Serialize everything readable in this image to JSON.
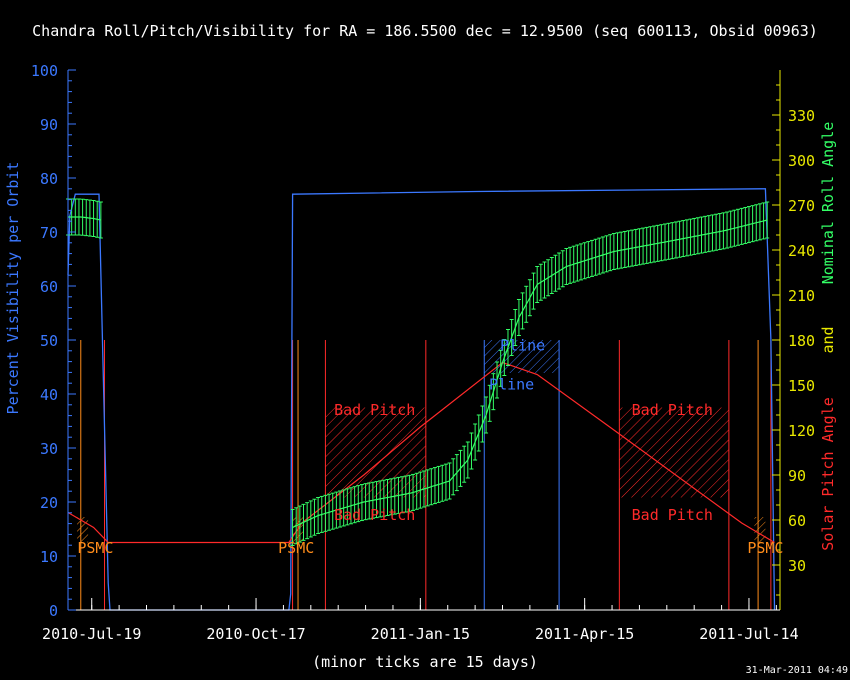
{
  "title": "Chandra Roll/Pitch/Visibility for RA = 186.5500 dec = 12.9500 (seq 600113, Obsid 00963)",
  "footer_note": "(minor ticks are 15 days)",
  "timestamp": "31-Mar-2011 04:49",
  "colors": {
    "background": "#000000",
    "visibility": "#3b78ff",
    "roll": "#33ff66",
    "pitch": "#ff2a2a",
    "right_axis": "#e8e800",
    "psmc": "#ff8c1a",
    "pline": "#3b78ff",
    "text": "#ffffff"
  },
  "chart_data": {
    "type": "line",
    "x_axis": {
      "ticks": [
        "2010-Jul-19",
        "2010-Oct-17",
        "2011-Jan-15",
        "2011-Apr-15",
        "2011-Jul-14"
      ],
      "range": [
        "2010-Jul-06",
        "2011-Jul-31"
      ],
      "minor_tick_days": 15
    },
    "left_axis": {
      "label": "Percent Visibility per Orbit",
      "range": [
        0,
        100
      ],
      "ticks": [
        "0",
        "10",
        "20",
        "30",
        "40",
        "50",
        "60",
        "70",
        "80",
        "90",
        "100"
      ]
    },
    "right_axis": {
      "label_parts": [
        "Nominal Roll Angle",
        "and",
        "Solar Pitch Angle"
      ],
      "range": [
        0,
        360
      ],
      "ticks": [
        "30",
        "60",
        "90",
        "120",
        "150",
        "180",
        "210",
        "240",
        "270",
        "300",
        "330"
      ]
    },
    "visibility_series": {
      "name": "Percent Visibility per Orbit",
      "points": [
        [
          "2010-Jul-06",
          62
        ],
        [
          "2010-Jul-07",
          73
        ],
        [
          "2010-Jul-10",
          77
        ],
        [
          "2010-Jul-23",
          77
        ],
        [
          "2010-Jul-28",
          5
        ],
        [
          "2010-Jul-29",
          0
        ],
        [
          "2010-Nov-04",
          0
        ],
        [
          "2010-Nov-05",
          3
        ],
        [
          "2010-Nov-06",
          77
        ],
        [
          "2011-Feb-15",
          77.5
        ],
        [
          "2011-Jul-20",
          78
        ],
        [
          "2011-Jul-23",
          78
        ],
        [
          "2011-Jul-26",
          50
        ],
        [
          "2011-Jul-28",
          0
        ]
      ]
    },
    "roll_series": {
      "name": "Nominal Roll Angle",
      "half_range_deg": 12,
      "segments": [
        [
          [
            "2010-Jul-06",
            262
          ],
          [
            "2010-Jul-13",
            262
          ],
          [
            "2010-Jul-20",
            261
          ],
          [
            "2010-Jul-24",
            260
          ]
        ],
        [
          [
            "2010-Nov-06",
            55
          ],
          [
            "2010-Nov-20",
            63
          ],
          [
            "2010-Dec-15",
            72
          ],
          [
            "2011-Jan-10",
            78
          ],
          [
            "2011-Jan-31",
            86
          ],
          [
            "2011-Feb-10",
            100
          ],
          [
            "2011-Feb-20",
            130
          ],
          [
            "2011-Mar-01",
            165
          ],
          [
            "2011-Mar-10",
            195
          ],
          [
            "2011-Mar-20",
            217
          ],
          [
            "2011-Apr-05",
            229
          ],
          [
            "2011-May-01",
            239
          ],
          [
            "2011-Jun-01",
            246
          ],
          [
            "2011-Jul-01",
            253
          ],
          [
            "2011-Jul-24",
            260
          ]
        ]
      ]
    },
    "pitch_series": {
      "name": "Solar Pitch Angle",
      "points": [
        [
          "2010-Jul-06",
          65
        ],
        [
          "2010-Jul-20",
          55
        ],
        [
          "2010-Jul-28",
          45
        ],
        [
          "2010-Nov-04",
          45
        ],
        [
          "2010-Nov-11",
          58
        ],
        [
          "2010-Dec-15",
          90
        ],
        [
          "2011-Jan-15",
          122
        ],
        [
          "2011-Mar-01",
          165
        ],
        [
          "2011-Mar-20",
          157
        ],
        [
          "2011-May-01",
          120
        ],
        [
          "2011-Jul-10",
          58
        ],
        [
          "2011-Jul-28",
          45
        ]
      ]
    },
    "psmc_markers": [
      "2010-Jul-13",
      "2010-Nov-09",
      "2011-Jul-19"
    ],
    "bad_pitch_lines": [
      "2010-Jul-26",
      "2010-Nov-06",
      "2010-Nov-24",
      "2011-Jan-18",
      "2011-May-04",
      "2011-Jul-03",
      "2011-Jul-26"
    ],
    "pline_lines": [
      "2011-Feb-19",
      "2011-Apr-01"
    ],
    "annotations": {
      "bad_pitch": "Bad Pitch",
      "pline": "Pline",
      "psmc": "PSMC"
    },
    "bad_pitch_regions": [
      [
        "2010-Nov-24",
        "2011-Jan-18",
        75,
        135
      ],
      [
        "2011-May-04",
        "2011-Jul-03",
        75,
        135
      ]
    ],
    "psmc_regions": [
      [
        "2010-Jul-11",
        "2010-Jul-17",
        45,
        62
      ],
      [
        "2010-Nov-06",
        "2010-Nov-12",
        45,
        62
      ],
      [
        "2011-Jul-17",
        "2011-Jul-23",
        45,
        62
      ]
    ],
    "pline_region": [
      "2011-Feb-19",
      "2011-Apr-01",
      158,
      180
    ],
    "grid": false
  }
}
